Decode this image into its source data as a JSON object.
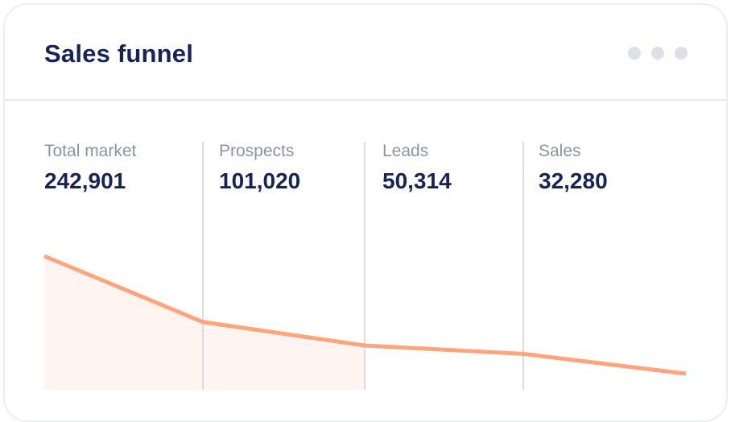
{
  "card": {
    "title": "Sales funnel",
    "menu_icon": "more-horizontal-icon"
  },
  "colors": {
    "title": "#16245a",
    "label": "#8a93a8",
    "line": "#ffa57c",
    "area": "#fff4ef",
    "divider": "#d9dce3",
    "menu_dots": "#dde0e7"
  },
  "chart_data": {
    "type": "line",
    "title": "Sales funnel",
    "categories": [
      "Total market",
      "Prospects",
      "Leads",
      "Sales"
    ],
    "series": [
      {
        "values": [
          242901,
          101020,
          50314,
          32280
        ]
      }
    ],
    "grid": false,
    "legend": "none",
    "area_fill_first_segments": true
  }
}
